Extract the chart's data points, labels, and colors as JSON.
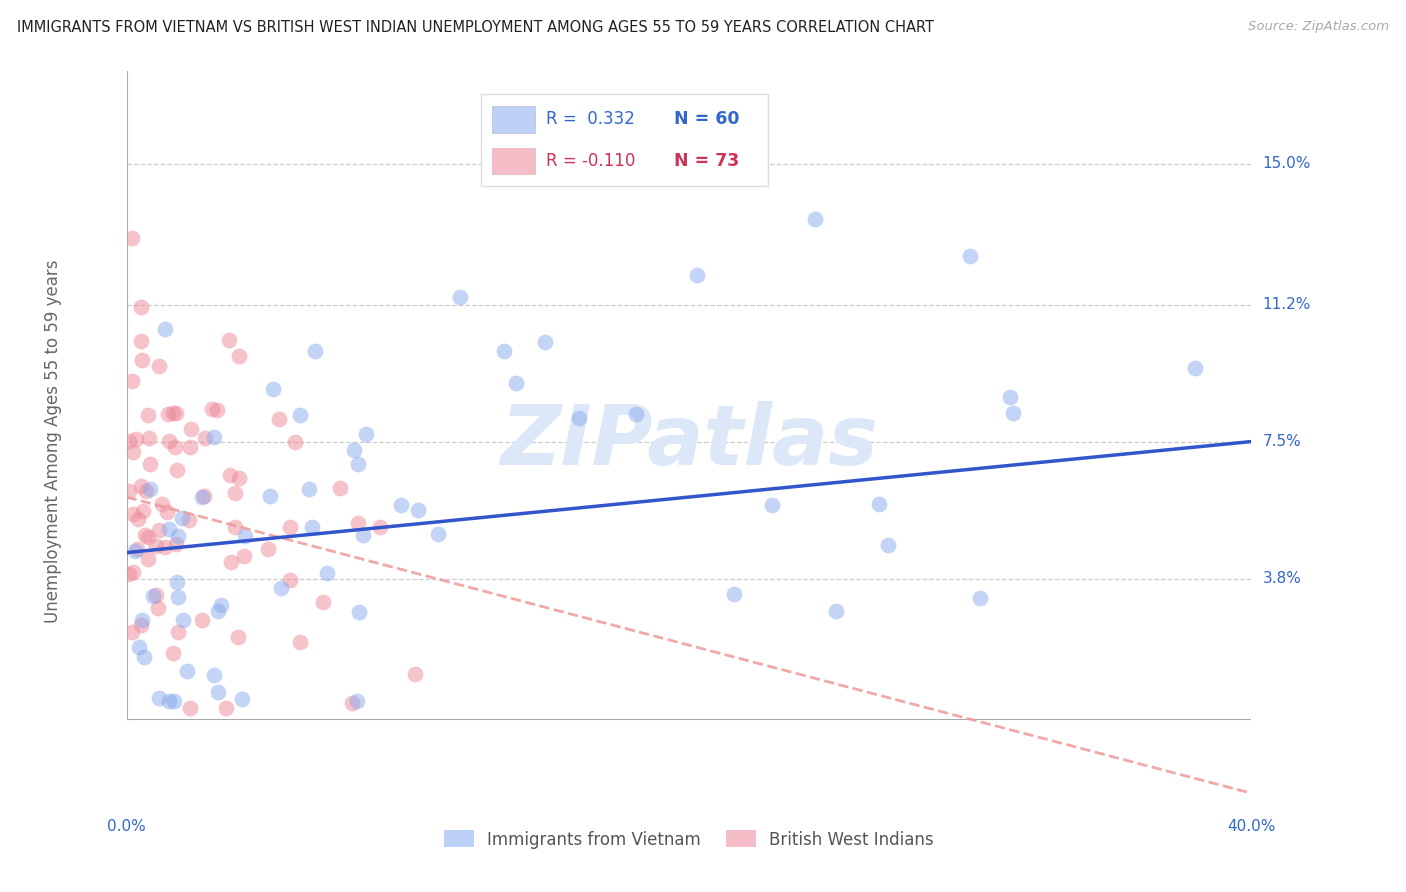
{
  "title": "IMMIGRANTS FROM VIETNAM VS BRITISH WEST INDIAN UNEMPLOYMENT AMONG AGES 55 TO 59 YEARS CORRELATION CHART",
  "source": "Source: ZipAtlas.com",
  "ylabel": "Unemployment Among Ages 55 to 59 years",
  "ytick_labels": [
    "15.0%",
    "11.2%",
    "7.5%",
    "3.8%"
  ],
  "ytick_values": [
    0.15,
    0.112,
    0.075,
    0.038
  ],
  "xtick_labels": [
    "0.0%",
    "40.0%"
  ],
  "xlim": [
    0.0,
    0.4
  ],
  "ylim": [
    -0.025,
    0.175
  ],
  "R_viet": 0.332,
  "N_viet": 60,
  "R_bwi": -0.11,
  "N_bwi": 73,
  "color_blue": "#88aaee",
  "color_pink": "#ee8899",
  "color_line_blue": "#3355cc",
  "color_line_pink": "#ee9999",
  "watermark_text": "ZIPatlas",
  "watermark_color": "#dce8f8",
  "viet_line_y0": 0.045,
  "viet_line_y1": 0.075,
  "bwi_line_y0": 0.06,
  "bwi_line_y1": -0.02
}
